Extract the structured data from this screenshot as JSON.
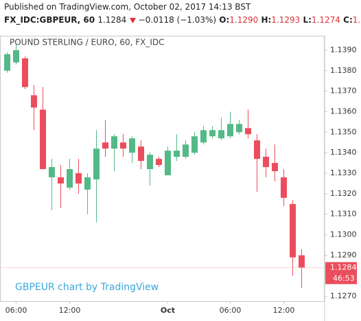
{
  "header": {
    "source": "Published on TradingView.com, October 02, 2017 14:13 BST",
    "symbol": "FX_IDC:GBPEUR, 60",
    "price": "1.1284",
    "change": "−0.0118 (−1.03%)",
    "ohlc": [
      {
        "label": "O:",
        "value": "1.1290"
      },
      {
        "label": "H:",
        "value": "1.1293"
      },
      {
        "label": "L:",
        "value": "1.1274"
      },
      {
        "label": "C:",
        "value": "1.1284"
      }
    ]
  },
  "chart_data": {
    "type": "candlestick",
    "legend_title": "POUND STERLING / EURO, 60, FX_IDC",
    "watermark": "GBPEUR chart by TradingView",
    "categories": [
      null,
      "06:00",
      null,
      null,
      null,
      null,
      null,
      "12:00",
      null,
      null,
      null,
      null,
      null,
      null,
      null,
      null,
      null,
      null,
      "Oct",
      null,
      null,
      null,
      null,
      null,
      null,
      "06:00",
      null,
      null,
      null,
      null,
      null,
      "12:00",
      null,
      null
    ],
    "open": [
      1.138,
      1.1384,
      1.1386,
      1.1368,
      1.1361,
      1.1328,
      1.1328,
      1.1323,
      1.133,
      1.1322,
      1.1327,
      1.1345,
      1.1342,
      1.1345,
      1.134,
      1.1343,
      1.1332,
      1.1337,
      1.1329,
      1.1338,
      1.1338,
      1.134,
      1.1345,
      1.1348,
      1.1347,
      1.1348,
      1.135,
      1.1352,
      1.1346,
      1.1338,
      1.1335,
      1.1328,
      1.1315,
      1.129
    ],
    "high": [
      1.1389,
      1.1393,
      1.1387,
      1.1373,
      1.1372,
      1.1337,
      1.1334,
      1.1337,
      1.1337,
      1.133,
      1.1351,
      1.1356,
      1.1349,
      1.1349,
      1.1348,
      1.1346,
      1.134,
      1.1338,
      1.1343,
      1.1349,
      1.1346,
      1.135,
      1.1353,
      1.1353,
      1.1357,
      1.136,
      1.1356,
      1.1361,
      1.1349,
      1.1342,
      1.1344,
      1.1332,
      1.1317,
      1.1293
    ],
    "low": [
      1.1379,
      1.1383,
      1.1371,
      1.1351,
      1.1332,
      1.1312,
      1.1313,
      1.1322,
      1.132,
      1.131,
      1.1306,
      1.1338,
      1.1331,
      1.1338,
      1.1335,
      1.1332,
      1.1324,
      1.1333,
      1.1329,
      1.1336,
      1.1337,
      1.1339,
      1.1344,
      1.1347,
      1.1346,
      1.1347,
      1.1349,
      1.1347,
      1.1321,
      1.1328,
      1.1326,
      1.1314,
      1.128,
      1.1274
    ],
    "close": [
      1.1388,
      1.139,
      1.1372,
      1.1362,
      1.1332,
      1.1333,
      1.1325,
      1.1332,
      1.1325,
      1.1328,
      1.1342,
      1.1342,
      1.1348,
      1.1342,
      1.1347,
      1.1336,
      1.1339,
      1.1334,
      1.1341,
      1.1341,
      1.1344,
      1.1348,
      1.1351,
      1.1351,
      1.1351,
      1.1354,
      1.1354,
      1.1349,
      1.1337,
      1.1333,
      1.1331,
      1.1318,
      1.1289,
      1.1284
    ],
    "up_color": "#53b987",
    "down_color": "#eb4d5c",
    "ylim": [
      1.12677,
      1.1397
    ],
    "yticks": [
      {
        "value": 1.127,
        "label": "1.1270"
      },
      {
        "value": 1.128,
        "label": "1.1280"
      },
      {
        "value": 1.129,
        "label": "1.1290"
      },
      {
        "value": 1.13,
        "label": "1.1300"
      },
      {
        "value": 1.131,
        "label": "1.1310"
      },
      {
        "value": 1.132,
        "label": "1.1320"
      },
      {
        "value": 1.133,
        "label": "1.1330"
      },
      {
        "value": 1.134,
        "label": "1.1340"
      },
      {
        "value": 1.135,
        "label": "1.1350"
      },
      {
        "value": 1.136,
        "label": "1.1360"
      },
      {
        "value": 1.137,
        "label": "1.1370"
      },
      {
        "value": 1.138,
        "label": "1.1380"
      },
      {
        "value": 1.139,
        "label": "1.1390"
      }
    ],
    "last_price": {
      "value": 1.1284,
      "label": "1.1284"
    },
    "countdown": "46:53"
  }
}
